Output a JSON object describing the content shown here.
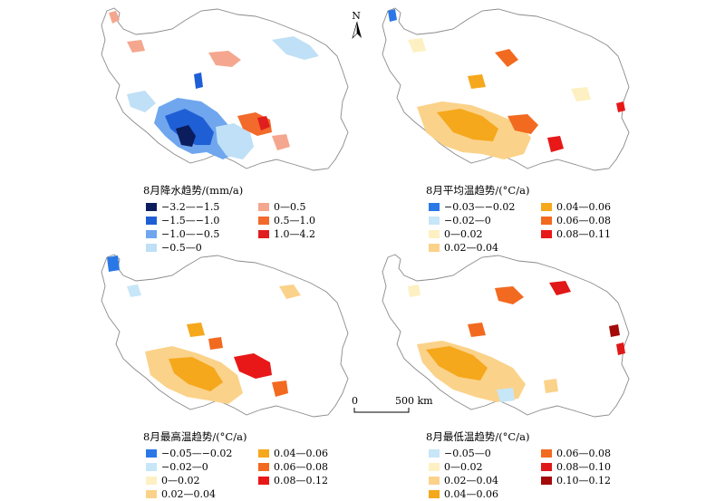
{
  "panels": [
    {
      "id": "precip",
      "title": "8月降水趋势/(mm/a)",
      "items": [
        {
          "label": "−3.2—−1.5",
          "color": "#0b1d5c"
        },
        {
          "label": "0—0.5",
          "color": "#f4a78e"
        },
        {
          "label": "−1.5—−1.0",
          "color": "#1f5fd6"
        },
        {
          "label": "0.5—1.0",
          "color": "#f26a2c"
        },
        {
          "label": "−1.0—−0.5",
          "color": "#6fa6ee"
        },
        {
          "label": "1.0—4.2",
          "color": "#e01e1e"
        },
        {
          "label": "−0.5—0",
          "color": "#bfe0f6"
        }
      ]
    },
    {
      "id": "mean-temp",
      "title": "8月平均温趋势/(°C/a)",
      "items": [
        {
          "label": "−0.03—−0.02",
          "color": "#2a78e6"
        },
        {
          "label": "0.04—0.06",
          "color": "#f5a81c"
        },
        {
          "label": "−0.02—0",
          "color": "#c7e6f7"
        },
        {
          "label": "0.06—0.08",
          "color": "#f26a20"
        },
        {
          "label": "0—0.02",
          "color": "#fdf0c2"
        },
        {
          "label": "0.08—0.11",
          "color": "#e81818"
        },
        {
          "label": "0.02—0.04",
          "color": "#fbd28a"
        }
      ]
    },
    {
      "id": "max-temp",
      "title": "8月最高温趋势/(°C/a)",
      "items": [
        {
          "label": "−0.05—−0.02",
          "color": "#2a78e6"
        },
        {
          "label": "0.04—0.06",
          "color": "#f5a81c"
        },
        {
          "label": "−0.02—0",
          "color": "#c7e6f7"
        },
        {
          "label": "0.06—0.08",
          "color": "#f26a20"
        },
        {
          "label": "0—0.02",
          "color": "#fdf0c2"
        },
        {
          "label": "0.08—0.12",
          "color": "#e81818"
        },
        {
          "label": "0.02—0.04",
          "color": "#fbd28a"
        }
      ]
    },
    {
      "id": "min-temp",
      "title": "8月最低温趋势/(°C/a)",
      "items": [
        {
          "label": "−0.05—0",
          "color": "#c7e6f7"
        },
        {
          "label": "0.06—0.08",
          "color": "#f26a20"
        },
        {
          "label": "0—0.02",
          "color": "#fdf0c2"
        },
        {
          "label": "0.08—0.10",
          "color": "#e01818"
        },
        {
          "label": "0.02—0.04",
          "color": "#fbd28a"
        },
        {
          "label": "0.10—0.12",
          "color": "#a30a0a"
        },
        {
          "label": "0.04—0.06",
          "color": "#f5a81c"
        }
      ]
    }
  ],
  "north_arrow": {
    "label": "N"
  },
  "scale_bar": {
    "start_label": "0",
    "end_label": "500 km"
  }
}
